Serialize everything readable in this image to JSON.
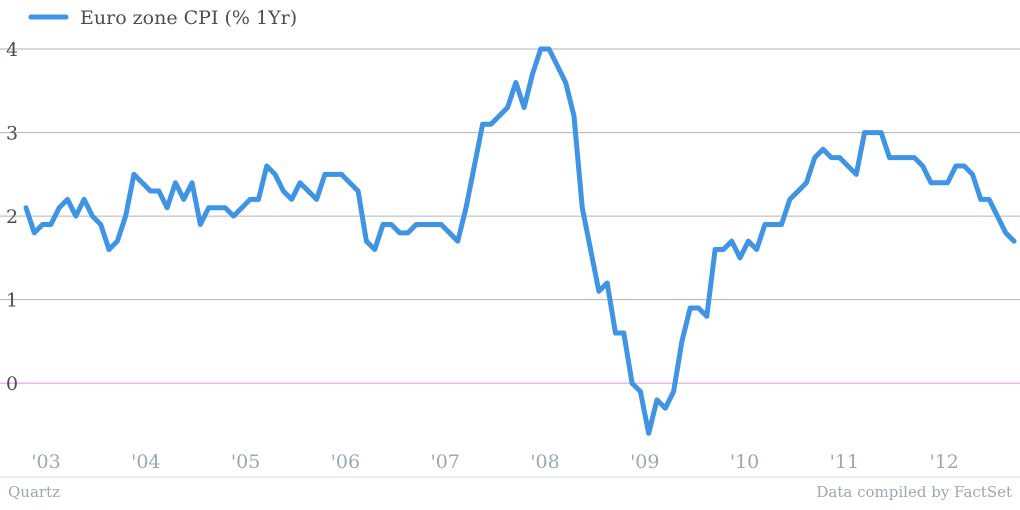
{
  "chart_data": {
    "type": "line",
    "series": [
      {
        "name": "Euro zone CPI (% 1Yr)",
        "color": "#3f94e3",
        "values": [
          2.1,
          1.8,
          1.9,
          1.9,
          2.1,
          2.2,
          2.0,
          2.2,
          2.0,
          1.9,
          1.6,
          1.7,
          2.0,
          2.5,
          2.4,
          2.3,
          2.3,
          2.1,
          2.4,
          2.2,
          2.4,
          1.9,
          2.1,
          2.1,
          2.1,
          2.0,
          2.1,
          2.2,
          2.2,
          2.6,
          2.5,
          2.3,
          2.2,
          2.4,
          2.3,
          2.2,
          2.5,
          2.5,
          2.5,
          2.4,
          2.3,
          1.7,
          1.6,
          1.9,
          1.9,
          1.8,
          1.8,
          1.9,
          1.9,
          1.9,
          1.9,
          1.8,
          1.7,
          2.1,
          2.6,
          3.1,
          3.1,
          3.2,
          3.3,
          3.6,
          3.3,
          3.7,
          4.0,
          4.0,
          3.8,
          3.6,
          3.2,
          2.1,
          1.6,
          1.1,
          1.2,
          0.6,
          0.6,
          0.0,
          -0.1,
          -0.6,
          -0.2,
          -0.3,
          -0.1,
          0.5,
          0.9,
          0.9,
          0.8,
          1.6,
          1.6,
          1.7,
          1.5,
          1.7,
          1.6,
          1.9,
          1.9,
          1.9,
          2.2,
          2.3,
          2.4,
          2.7,
          2.8,
          2.7,
          2.7,
          2.6,
          2.5,
          3.0,
          3.0,
          3.0,
          2.7,
          2.7,
          2.7,
          2.7,
          2.6,
          2.4,
          2.4,
          2.4,
          2.6,
          2.6,
          2.5,
          2.2,
          2.2,
          2.0,
          1.8,
          1.7
        ]
      }
    ],
    "x_start_year": 2003,
    "x_end_year": 2012.9,
    "xticks": [
      {
        "year": 2003,
        "label": "'03"
      },
      {
        "year": 2004,
        "label": "'04"
      },
      {
        "year": 2005,
        "label": "'05"
      },
      {
        "year": 2006,
        "label": "'06"
      },
      {
        "year": 2007,
        "label": "'07"
      },
      {
        "year": 2008,
        "label": "'08"
      },
      {
        "year": 2009,
        "label": "'09"
      },
      {
        "year": 2010,
        "label": "'10"
      },
      {
        "year": 2011,
        "label": "'11"
      },
      {
        "year": 2012,
        "label": "'12"
      }
    ],
    "yticks": [
      4,
      3,
      2,
      1,
      0
    ],
    "ylim": [
      -0.8,
      4.3
    ],
    "zero_line_color": "#e6a0e6",
    "grid": true,
    "legend_position": "top-left"
  },
  "footer": {
    "source_left": "Quartz",
    "source_right": "Data compiled by FactSet"
  }
}
